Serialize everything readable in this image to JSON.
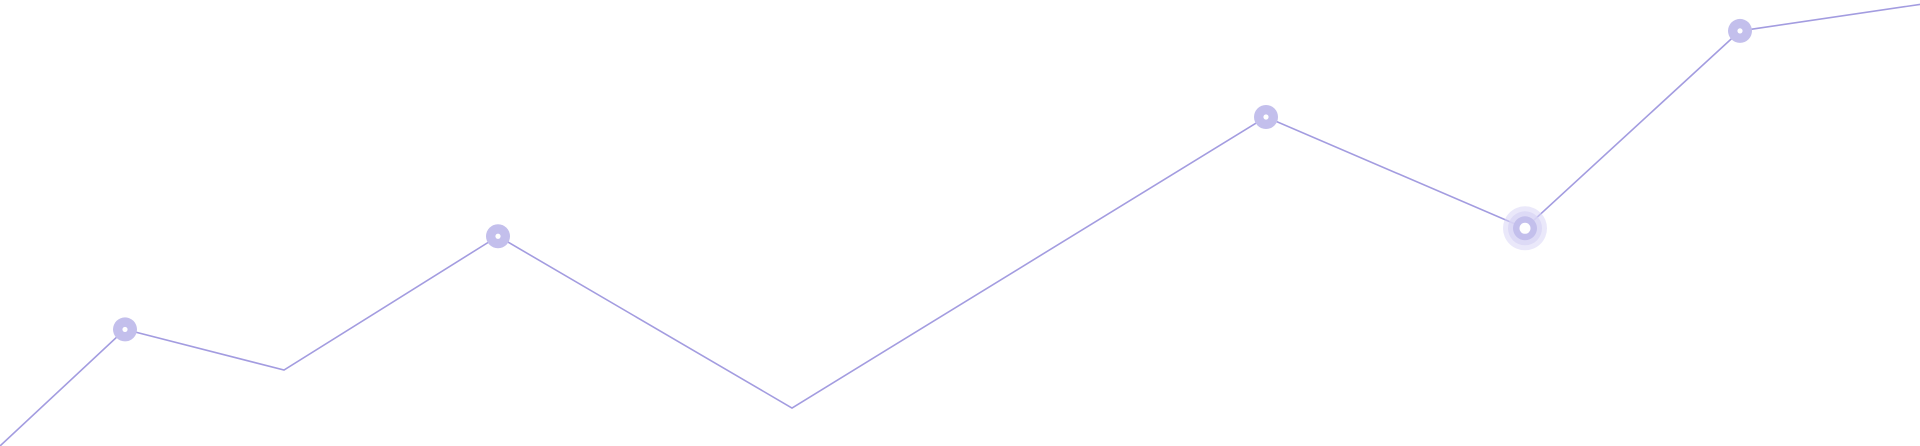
{
  "chart_data": {
    "type": "line",
    "title": "",
    "xlabel": "",
    "ylabel": "",
    "grid": false,
    "legend": "none",
    "x": [
      0,
      1,
      2,
      3,
      4,
      5,
      6,
      7,
      8,
      9
    ],
    "series": [
      {
        "values": [
          0.0,
          26.4,
          17.2,
          47.5,
          8.6,
          74.5,
          49.3,
          94.0,
          100.0,
          101.0
        ],
        "markers": [
          false,
          true,
          false,
          true,
          false,
          true,
          true,
          true,
          false,
          false
        ],
        "highlight_index": 6
      }
    ],
    "ylim": [
      0,
      101
    ],
    "xlim": [
      0,
      9
    ],
    "colors": {
      "line": "#a39ce0",
      "marker": "#c3bfec",
      "marker_center": "#ffffff",
      "halo": "#d9d6f5",
      "background": "#ffffff"
    }
  }
}
